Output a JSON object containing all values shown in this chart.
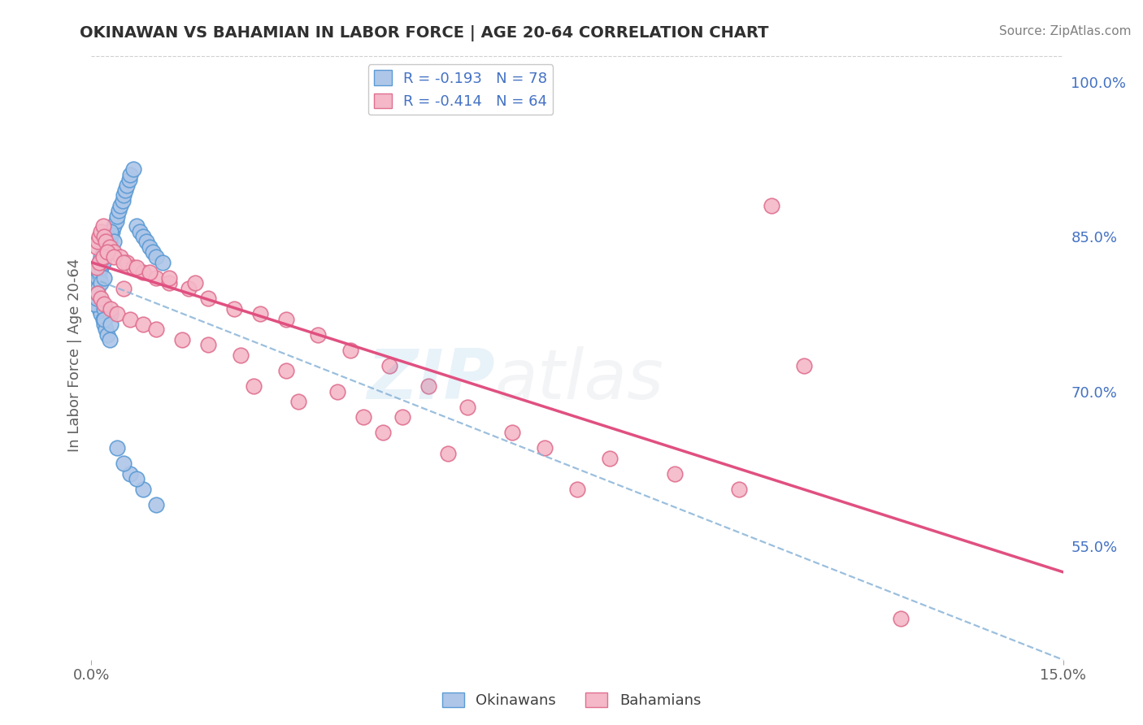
{
  "title": "OKINAWAN VS BAHAMIAN IN LABOR FORCE | AGE 20-64 CORRELATION CHART",
  "source": "Source: ZipAtlas.com",
  "ylabel": "In Labor Force | Age 20-64",
  "ytick_values": [
    55,
    70,
    85,
    100
  ],
  "ytick_labels": [
    "55.0%",
    "70.0%",
    "85.0%",
    "100.0%"
  ],
  "xtick_values": [
    0,
    15
  ],
  "xtick_labels": [
    "0.0%",
    "15.0%"
  ],
  "x_min": 0.0,
  "x_max": 15.0,
  "y_min": 44,
  "y_max": 103,
  "legend_r1": "R = -0.193",
  "legend_n1": "N = 78",
  "legend_r2": "R = -0.414",
  "legend_n2": "N = 64",
  "okinawan_color": "#aec6e8",
  "okinawan_edge": "#5b9bd5",
  "bahamian_color": "#f4b8c8",
  "bahamian_edge": "#e07090",
  "trend1_color": "#8ab4d8",
  "trend2_color": "#e05080",
  "watermark_zip_color": "#6aaad8",
  "watermark_atlas_color": "#b0b8c8",
  "title_color": "#303030",
  "source_color": "#808080",
  "ytick_color": "#4472c4",
  "xtick_color": "#606060",
  "ylabel_color": "#606060",
  "grid_color": "#d0d0d0",
  "legend_border_color": "#c8c8c8",
  "trend1_y0": 81.0,
  "trend1_y1": 44.0,
  "trend2_y0": 82.5,
  "trend2_y1": 52.5,
  "ok_x": [
    0.1,
    0.12,
    0.15,
    0.18,
    0.2,
    0.22,
    0.25,
    0.28,
    0.3,
    0.32,
    0.35,
    0.38,
    0.4,
    0.42,
    0.45,
    0.48,
    0.5,
    0.52,
    0.55,
    0.58,
    0.6,
    0.65,
    0.7,
    0.75,
    0.8,
    0.85,
    0.9,
    0.95,
    1.0,
    1.1,
    0.05,
    0.08,
    0.1,
    0.12,
    0.15,
    0.18,
    0.2,
    0.22,
    0.25,
    0.28,
    0.05,
    0.08,
    0.1,
    0.12,
    0.15,
    0.18,
    0.2,
    0.22,
    0.25,
    0.3,
    0.05,
    0.08,
    0.1,
    0.12,
    0.15,
    0.18,
    0.2,
    0.25,
    0.3,
    0.35,
    0.05,
    0.08,
    0.1,
    0.15,
    0.2,
    0.05,
    0.08,
    0.1,
    0.2,
    0.3,
    0.4,
    0.6,
    0.8,
    1.0,
    0.5,
    0.7,
    0.2,
    0.3
  ],
  "ok_y": [
    80.5,
    81.0,
    82.0,
    82.5,
    83.0,
    83.5,
    84.0,
    84.5,
    85.0,
    85.5,
    86.0,
    86.5,
    87.0,
    87.5,
    88.0,
    88.5,
    89.0,
    89.5,
    90.0,
    90.5,
    91.0,
    91.5,
    86.0,
    85.5,
    85.0,
    84.5,
    84.0,
    83.5,
    83.0,
    82.5,
    79.5,
    79.0,
    78.5,
    78.0,
    77.5,
    77.0,
    76.5,
    76.0,
    75.5,
    75.0,
    81.0,
    81.5,
    82.0,
    82.5,
    83.0,
    83.5,
    84.0,
    84.5,
    85.0,
    85.5,
    80.0,
    80.5,
    81.0,
    81.5,
    82.0,
    82.5,
    83.0,
    83.5,
    84.0,
    84.5,
    79.0,
    79.5,
    80.0,
    80.5,
    81.0,
    78.5,
    79.0,
    79.5,
    78.0,
    77.5,
    64.5,
    62.0,
    60.5,
    59.0,
    63.0,
    61.5,
    77.0,
    76.5
  ],
  "bah_x": [
    0.08,
    0.1,
    0.12,
    0.15,
    0.18,
    0.2,
    0.22,
    0.28,
    0.35,
    0.45,
    0.55,
    0.65,
    0.8,
    1.0,
    1.2,
    1.5,
    1.8,
    2.2,
    2.6,
    3.0,
    3.5,
    4.0,
    4.6,
    5.2,
    5.8,
    6.5,
    7.0,
    8.0,
    9.0,
    10.0,
    0.08,
    0.12,
    0.18,
    0.25,
    0.35,
    0.5,
    0.7,
    0.9,
    1.2,
    1.6,
    0.1,
    0.15,
    0.2,
    0.3,
    0.4,
    0.6,
    0.8,
    1.0,
    1.4,
    1.8,
    2.3,
    3.0,
    3.8,
    4.8,
    2.5,
    3.2,
    4.2,
    4.5,
    5.5,
    7.5,
    0.5,
    10.5,
    11.0,
    12.5
  ],
  "bah_y": [
    84.0,
    84.5,
    85.0,
    85.5,
    86.0,
    85.0,
    84.5,
    84.0,
    83.5,
    83.0,
    82.5,
    82.0,
    81.5,
    81.0,
    80.5,
    80.0,
    79.0,
    78.0,
    77.5,
    77.0,
    75.5,
    74.0,
    72.5,
    70.5,
    68.5,
    66.0,
    64.5,
    63.5,
    62.0,
    60.5,
    82.0,
    82.5,
    83.0,
    83.5,
    83.0,
    82.5,
    82.0,
    81.5,
    81.0,
    80.5,
    79.5,
    79.0,
    78.5,
    78.0,
    77.5,
    77.0,
    76.5,
    76.0,
    75.0,
    74.5,
    73.5,
    72.0,
    70.0,
    67.5,
    70.5,
    69.0,
    67.5,
    66.0,
    64.0,
    60.5,
    80.0,
    88.0,
    72.5,
    48.0
  ]
}
